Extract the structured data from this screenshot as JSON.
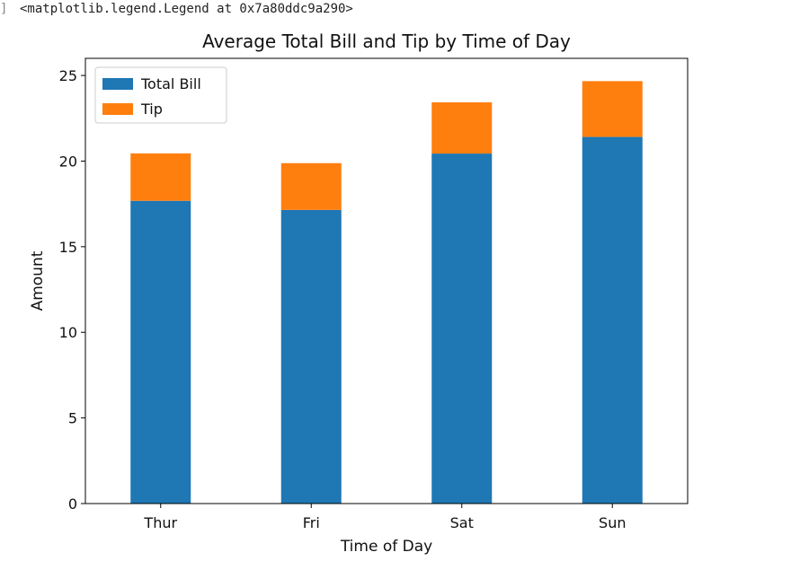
{
  "output": {
    "text": "<matplotlib.legend.Legend at 0x7a80ddc9a290>"
  },
  "chart_data": {
    "type": "bar",
    "stacked": true,
    "title": "Average Total Bill and Tip by Time of Day",
    "xlabel": "Time of Day",
    "ylabel": "Amount",
    "categories": [
      "Thur",
      "Fri",
      "Sat",
      "Sun"
    ],
    "series": [
      {
        "name": "Total Bill",
        "values": [
          17.68,
          17.15,
          20.44,
          21.41
        ],
        "color": "#1f77b4"
      },
      {
        "name": "Tip",
        "values": [
          2.77,
          2.73,
          2.99,
          3.26
        ],
        "color": "#ff7f0e"
      }
    ],
    "ylim": [
      0,
      26
    ],
    "yticks": [
      0,
      5,
      10,
      15,
      20,
      25
    ],
    "grid": false,
    "legend_position": "top-left"
  }
}
